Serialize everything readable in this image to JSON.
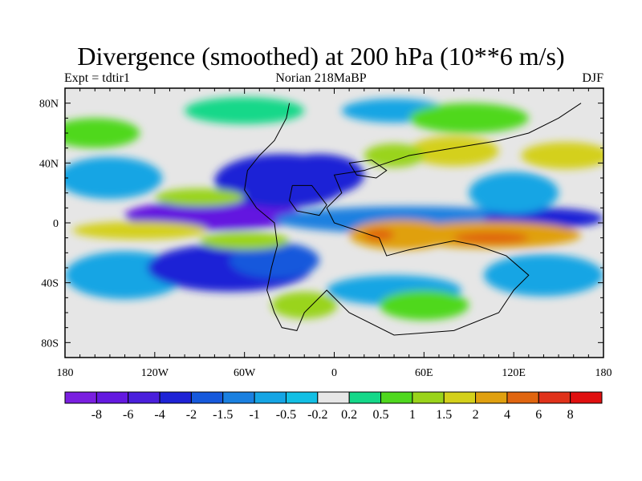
{
  "chart_data": {
    "type": "heatmap",
    "title": "Divergence (smoothed) at 200 hPa (10**6 m/s)",
    "subtitle_left": "Expt = tdtir1",
    "subtitle_center": "Norian  218MaBP",
    "subtitle_right": "DJF",
    "x_ticks": [
      {
        "value": -180,
        "label": "180"
      },
      {
        "value": -120,
        "label": "120W"
      },
      {
        "value": -60,
        "label": "60W"
      },
      {
        "value": 0,
        "label": "0"
      },
      {
        "value": 60,
        "label": "60E"
      },
      {
        "value": 120,
        "label": "120E"
      },
      {
        "value": 180,
        "label": "180"
      }
    ],
    "y_ticks": [
      {
        "value": 80,
        "label": "80N"
      },
      {
        "value": 40,
        "label": "40N"
      },
      {
        "value": 0,
        "label": "0"
      },
      {
        "value": -40,
        "label": "40S"
      },
      {
        "value": -80,
        "label": "80S"
      }
    ],
    "xlim": [
      -180,
      180
    ],
    "ylim": [
      -90,
      90
    ],
    "colorbar": {
      "colors": [
        "#7a1fe0",
        "#6419e0",
        "#4a1fdc",
        "#1e23d6",
        "#1659dc",
        "#1a80e0",
        "#15a5e4",
        "#12bfe4",
        "#e6e6e6",
        "#14d889",
        "#4fd81e",
        "#9ad41a",
        "#d4d01a",
        "#e0a00f",
        "#e0650f",
        "#e0321a",
        "#e00f0f"
      ],
      "levels": [
        "-8",
        "-6",
        "-4",
        "-2",
        "-1.5",
        "-1",
        "-0.5",
        "-0.2",
        "0.2",
        "0.5",
        "1",
        "1.5",
        "2",
        "4",
        "6",
        "8"
      ]
    },
    "field_blobs": [
      {
        "lon": -80,
        "lat": 5,
        "rx": 60,
        "ry": 10,
        "value": -6
      },
      {
        "lon": -35,
        "lat": 28,
        "rx": 45,
        "ry": 18,
        "value": -2.2
      },
      {
        "lon": -10,
        "lat": 32,
        "rx": 30,
        "ry": 14,
        "value": -2.5
      },
      {
        "lon": 50,
        "lat": 2,
        "rx": 90,
        "ry": 9,
        "value": -1.2
      },
      {
        "lon": 140,
        "lat": 3,
        "rx": 40,
        "ry": 7,
        "value": -2
      },
      {
        "lon": 120,
        "lat": 20,
        "rx": 30,
        "ry": 14,
        "value": -0.8
      },
      {
        "lon": -150,
        "lat": 30,
        "rx": 35,
        "ry": 14,
        "value": -0.7
      },
      {
        "lon": -140,
        "lat": -35,
        "rx": 40,
        "ry": 16,
        "value": -0.8
      },
      {
        "lon": -70,
        "lat": -30,
        "rx": 55,
        "ry": 16,
        "value": -2.5
      },
      {
        "lon": -40,
        "lat": -25,
        "rx": 30,
        "ry": 12,
        "value": -1.5
      },
      {
        "lon": 40,
        "lat": -45,
        "rx": 45,
        "ry": 10,
        "value": -0.7
      },
      {
        "lon": 140,
        "lat": -35,
        "rx": 40,
        "ry": 14,
        "value": -0.9
      },
      {
        "lon": -130,
        "lat": -5,
        "rx": 45,
        "ry": 6,
        "value": 1.8
      },
      {
        "lon": -90,
        "lat": 17,
        "rx": 30,
        "ry": 6,
        "value": 1.5
      },
      {
        "lon": -60,
        "lat": -12,
        "rx": 30,
        "ry": 6,
        "value": 1.2
      },
      {
        "lon": 45,
        "lat": -8,
        "rx": 35,
        "ry": 10,
        "value": 3.2
      },
      {
        "lon": 105,
        "lat": -8,
        "rx": 60,
        "ry": 9,
        "value": 3
      },
      {
        "lon": 105,
        "lat": -10,
        "rx": 25,
        "ry": 4,
        "value": 5
      },
      {
        "lon": 30,
        "lat": -8,
        "rx": 10,
        "ry": 4,
        "value": 4.5
      },
      {
        "lon": 155,
        "lat": 45,
        "rx": 30,
        "ry": 9,
        "value": 2
      },
      {
        "lon": 80,
        "lat": 48,
        "rx": 30,
        "ry": 10,
        "value": 1.8
      },
      {
        "lon": 40,
        "lat": 45,
        "rx": 20,
        "ry": 8,
        "value": 1.2
      },
      {
        "lon": -20,
        "lat": -55,
        "rx": 22,
        "ry": 9,
        "value": 1.5
      },
      {
        "lon": 60,
        "lat": -55,
        "rx": 30,
        "ry": 10,
        "value": 0.9
      },
      {
        "lon": -160,
        "lat": 60,
        "rx": 30,
        "ry": 10,
        "value": 0.6
      },
      {
        "lon": 40,
        "lat": 75,
        "rx": 35,
        "ry": 8,
        "value": -0.5
      },
      {
        "lon": -60,
        "lat": 75,
        "rx": 40,
        "ry": 9,
        "value": 0.5
      },
      {
        "lon": 90,
        "lat": 70,
        "rx": 40,
        "ry": 10,
        "value": 0.6
      }
    ],
    "coastline": [
      [
        [
          -30,
          80
        ],
        [
          -32,
          70
        ],
        [
          -40,
          55
        ],
        [
          -50,
          45
        ],
        [
          -58,
          35
        ],
        [
          -60,
          22
        ],
        [
          -52,
          10
        ],
        [
          -40,
          0
        ],
        [
          -38,
          -15
        ],
        [
          -42,
          -30
        ],
        [
          -45,
          -45
        ],
        [
          -40,
          -60
        ],
        [
          -35,
          -70
        ],
        [
          -25,
          -72
        ],
        [
          -20,
          -60
        ],
        [
          -5,
          -45
        ],
        [
          10,
          -60
        ],
        [
          40,
          -75
        ],
        [
          80,
          -72
        ],
        [
          110,
          -60
        ],
        [
          120,
          -45
        ],
        [
          130,
          -35
        ],
        [
          115,
          -22
        ],
        [
          95,
          -15
        ],
        [
          80,
          -12
        ],
        [
          50,
          -18
        ],
        [
          35,
          -22
        ],
        [
          30,
          -10
        ],
        [
          15,
          -5
        ],
        [
          0,
          0
        ],
        [
          -5,
          10
        ],
        [
          5,
          20
        ],
        [
          0,
          32
        ],
        [
          20,
          35
        ],
        [
          35,
          40
        ],
        [
          50,
          45
        ],
        [
          80,
          50
        ],
        [
          110,
          55
        ],
        [
          130,
          60
        ],
        [
          150,
          70
        ],
        [
          165,
          80
        ]
      ],
      [
        [
          -28,
          25
        ],
        [
          -15,
          25
        ],
        [
          -5,
          12
        ],
        [
          -10,
          5
        ],
        [
          -25,
          8
        ],
        [
          -30,
          15
        ],
        [
          -28,
          25
        ]
      ],
      [
        [
          10,
          40
        ],
        [
          25,
          42
        ],
        [
          35,
          35
        ],
        [
          28,
          30
        ],
        [
          15,
          32
        ],
        [
          10,
          40
        ]
      ]
    ]
  }
}
